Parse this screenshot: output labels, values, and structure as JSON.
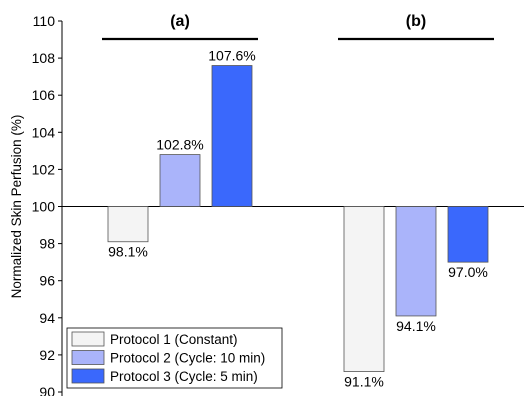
{
  "chart_data": {
    "type": "bar",
    "ylabel": "Normalized Skin Perfusion (%)",
    "ylim": [
      90,
      110
    ],
    "yticks": [
      90,
      92,
      94,
      96,
      98,
      100,
      102,
      104,
      106,
      108,
      110
    ],
    "baseline": 100,
    "grid": false,
    "legend_position": "bottom-left",
    "groups": [
      {
        "label": "(a)",
        "values": [
          98.1,
          102.8,
          107.6
        ],
        "labels": [
          "98.1%",
          "102.8%",
          "107.6%"
        ]
      },
      {
        "label": "(b)",
        "values": [
          91.1,
          94.1,
          97.0
        ],
        "labels": [
          "91.1%",
          "94.1%",
          "97.0%"
        ]
      }
    ],
    "series": [
      {
        "name": "Protocol 1 (Constant)",
        "color": "#f4f4f4"
      },
      {
        "name": "Protocol 2 (Cycle: 10 min)",
        "color": "#aab4fa"
      },
      {
        "name": "Protocol 3 (Cycle: 5 min)",
        "color": "#3a68fc"
      }
    ]
  }
}
